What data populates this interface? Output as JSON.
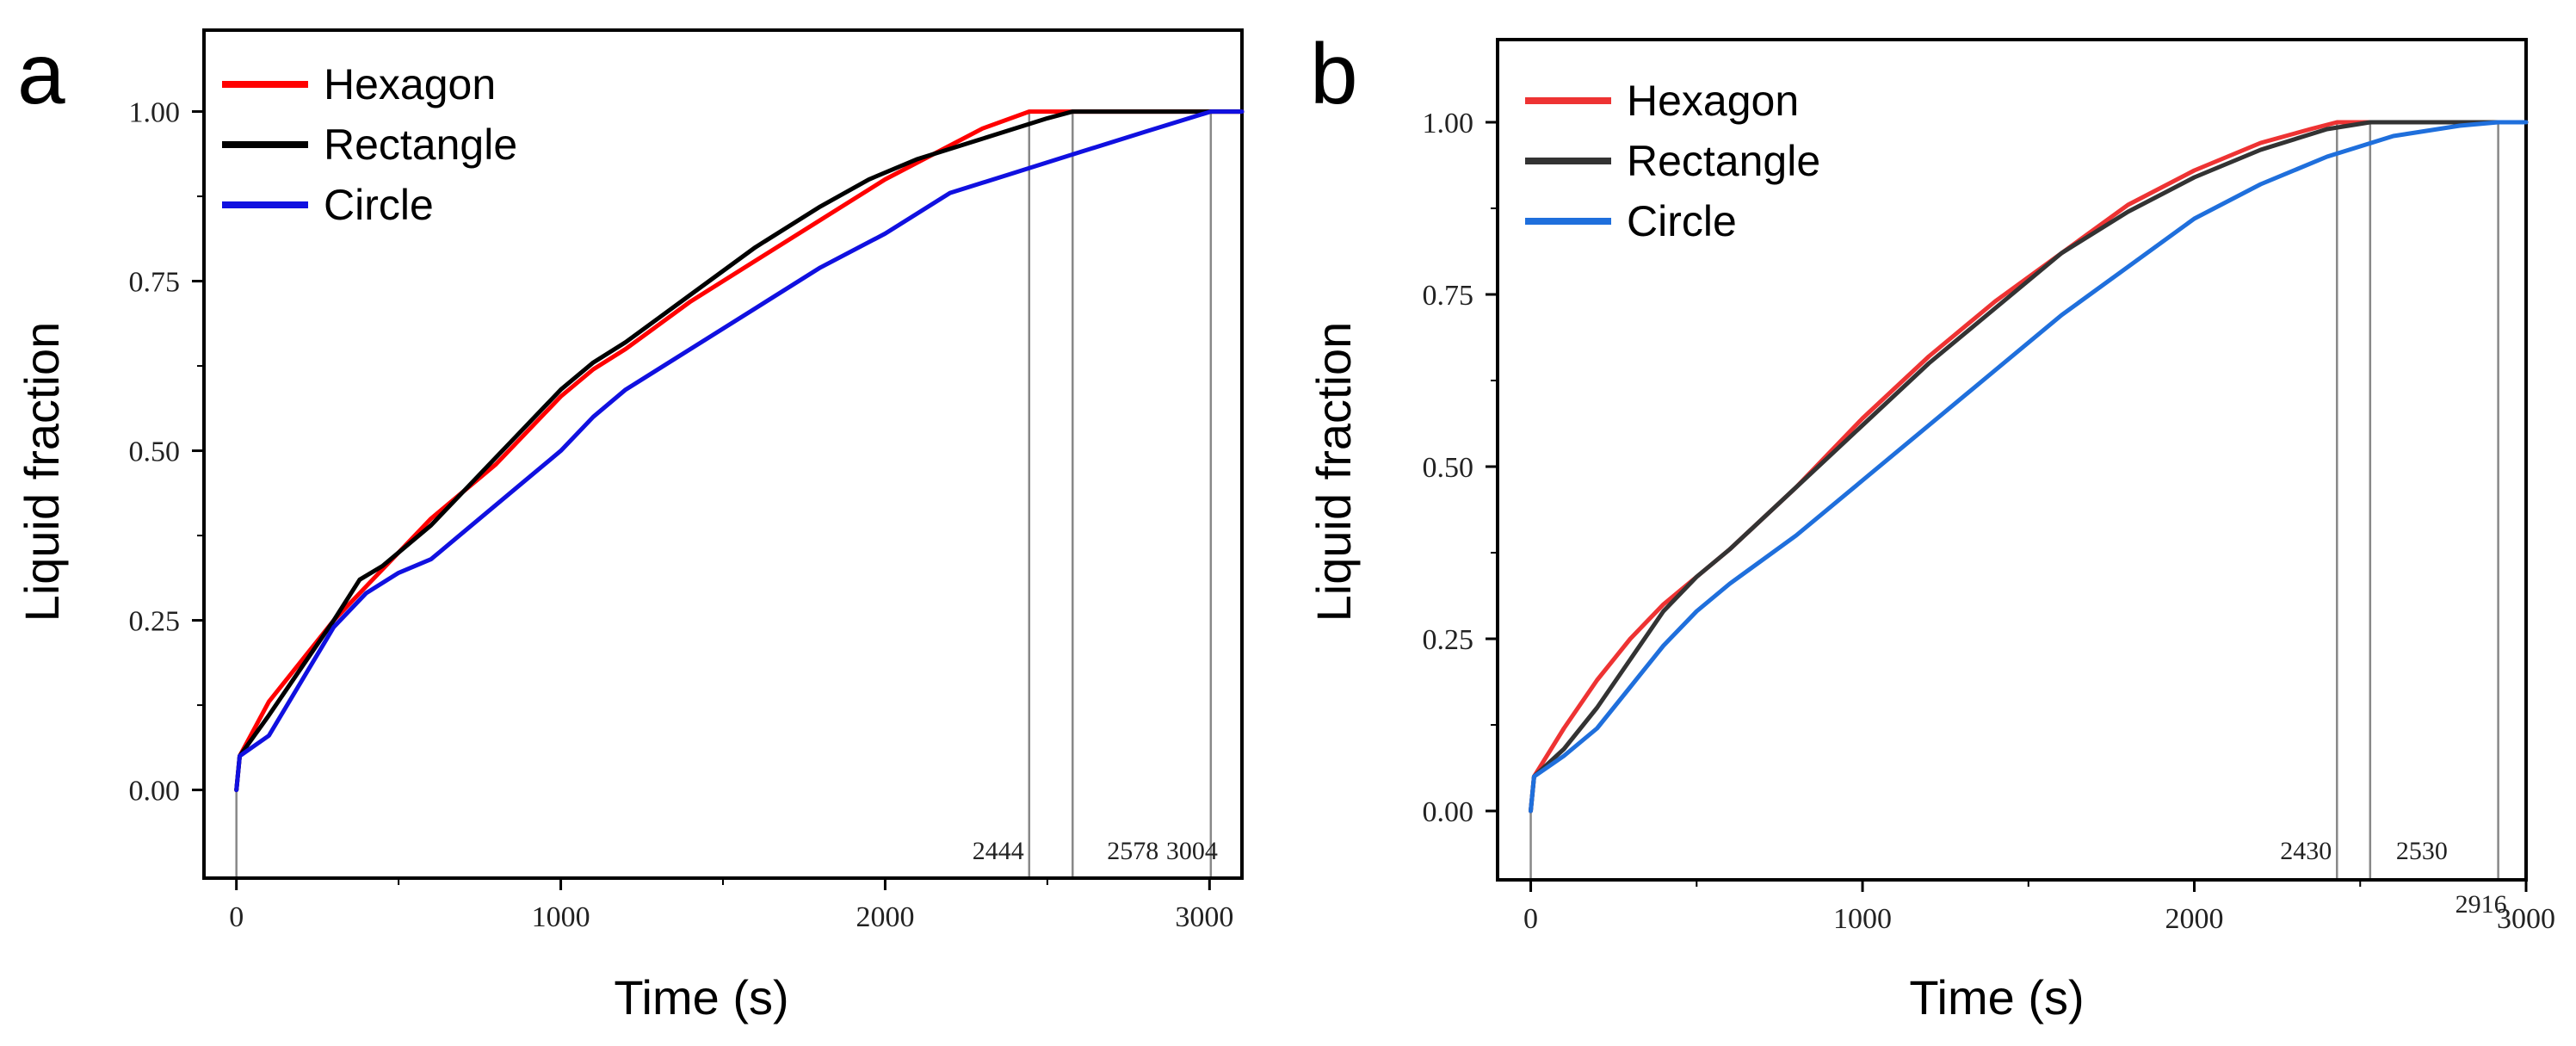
{
  "chart_data": [
    {
      "type": "line",
      "panel": "a",
      "xlabel": "Time (s)",
      "ylabel": "Liquid fraction",
      "xlim": [
        -100,
        3100
      ],
      "ylim": [
        -0.13,
        1.12
      ],
      "xticks": [
        "0",
        "1000",
        "2000",
        "3000"
      ],
      "yticks": [
        "0.00",
        "0.25",
        "0.50",
        "0.75",
        "1.00"
      ],
      "legend_position": "top-left",
      "series": [
        {
          "name": "Hexagon",
          "color": "#ff0000",
          "x": [
            0,
            10,
            100,
            200,
            300,
            400,
            500,
            600,
            700,
            800,
            900,
            1000,
            1100,
            1200,
            1400,
            1600,
            1800,
            2000,
            2200,
            2300,
            2444,
            3100
          ],
          "y": [
            0,
            0.05,
            0.13,
            0.19,
            0.25,
            0.3,
            0.35,
            0.4,
            0.44,
            0.48,
            0.53,
            0.58,
            0.62,
            0.65,
            0.72,
            0.78,
            0.84,
            0.9,
            0.95,
            0.975,
            1.0,
            1.0
          ]
        },
        {
          "name": "Rectangle",
          "color": "#000000",
          "x": [
            0,
            10,
            100,
            200,
            300,
            380,
            450,
            500,
            600,
            700,
            800,
            900,
            1000,
            1100,
            1200,
            1400,
            1600,
            1800,
            1950,
            2100,
            2300,
            2500,
            2578,
            3100
          ],
          "y": [
            0,
            0.05,
            0.11,
            0.18,
            0.25,
            0.31,
            0.33,
            0.35,
            0.39,
            0.44,
            0.49,
            0.54,
            0.59,
            0.63,
            0.66,
            0.73,
            0.8,
            0.86,
            0.9,
            0.93,
            0.96,
            0.99,
            1.0,
            1.0
          ]
        },
        {
          "name": "Circle",
          "color": "#1010e0",
          "x": [
            0,
            10,
            100,
            200,
            300,
            400,
            500,
            600,
            700,
            800,
            900,
            1000,
            1100,
            1200,
            1400,
            1600,
            1800,
            2000,
            2200,
            2400,
            2600,
            2800,
            3004,
            3100
          ],
          "y": [
            0,
            0.05,
            0.08,
            0.16,
            0.24,
            0.29,
            0.32,
            0.34,
            0.38,
            0.42,
            0.46,
            0.5,
            0.55,
            0.59,
            0.65,
            0.71,
            0.77,
            0.82,
            0.88,
            0.91,
            0.94,
            0.97,
            1.0,
            1.0
          ]
        }
      ],
      "reference_lines": [
        {
          "x": 2444,
          "label": "2444"
        },
        {
          "x": 2578,
          "label": "2578"
        },
        {
          "x": 3004,
          "label": "3004"
        }
      ]
    },
    {
      "type": "line",
      "panel": "b",
      "xlabel": "Time (s)",
      "ylabel": "Liquid fraction",
      "xlim": [
        -100,
        3000
      ],
      "ylim": [
        -0.1,
        1.12
      ],
      "xticks": [
        "0",
        "1000",
        "2000",
        "3000"
      ],
      "yticks": [
        "0.00",
        "0.25",
        "0.50",
        "0.75",
        "1.00"
      ],
      "legend_position": "top-left",
      "series": [
        {
          "name": "Hexagon",
          "color": "#ee3333",
          "x": [
            0,
            10,
            100,
            200,
            300,
            400,
            500,
            600,
            800,
            1000,
            1200,
            1400,
            1600,
            1800,
            2000,
            2200,
            2350,
            2430,
            3000
          ],
          "y": [
            0,
            0.05,
            0.12,
            0.19,
            0.25,
            0.3,
            0.34,
            0.38,
            0.47,
            0.57,
            0.66,
            0.74,
            0.81,
            0.88,
            0.93,
            0.97,
            0.99,
            1.0,
            1.0
          ]
        },
        {
          "name": "Rectangle",
          "color": "#333333",
          "x": [
            0,
            10,
            100,
            200,
            300,
            400,
            500,
            600,
            800,
            1000,
            1200,
            1400,
            1600,
            1800,
            2000,
            2200,
            2400,
            2530,
            3000
          ],
          "y": [
            0,
            0.05,
            0.09,
            0.15,
            0.22,
            0.29,
            0.34,
            0.38,
            0.47,
            0.56,
            0.65,
            0.73,
            0.81,
            0.87,
            0.92,
            0.96,
            0.99,
            1.0,
            1.0
          ]
        },
        {
          "name": "Circle",
          "color": "#1f6fdc",
          "x": [
            0,
            10,
            100,
            200,
            300,
            400,
            500,
            600,
            800,
            1000,
            1200,
            1400,
            1600,
            1800,
            2000,
            2200,
            2400,
            2600,
            2800,
            2916,
            3000
          ],
          "y": [
            0,
            0.05,
            0.08,
            0.12,
            0.18,
            0.24,
            0.29,
            0.33,
            0.4,
            0.48,
            0.56,
            0.64,
            0.72,
            0.79,
            0.86,
            0.91,
            0.95,
            0.98,
            0.995,
            1.0,
            1.0
          ]
        }
      ],
      "reference_lines": [
        {
          "x": 2430,
          "label": "2430"
        },
        {
          "x": 2530,
          "label": "2530"
        },
        {
          "x": 2916,
          "label": "2916"
        }
      ]
    }
  ]
}
